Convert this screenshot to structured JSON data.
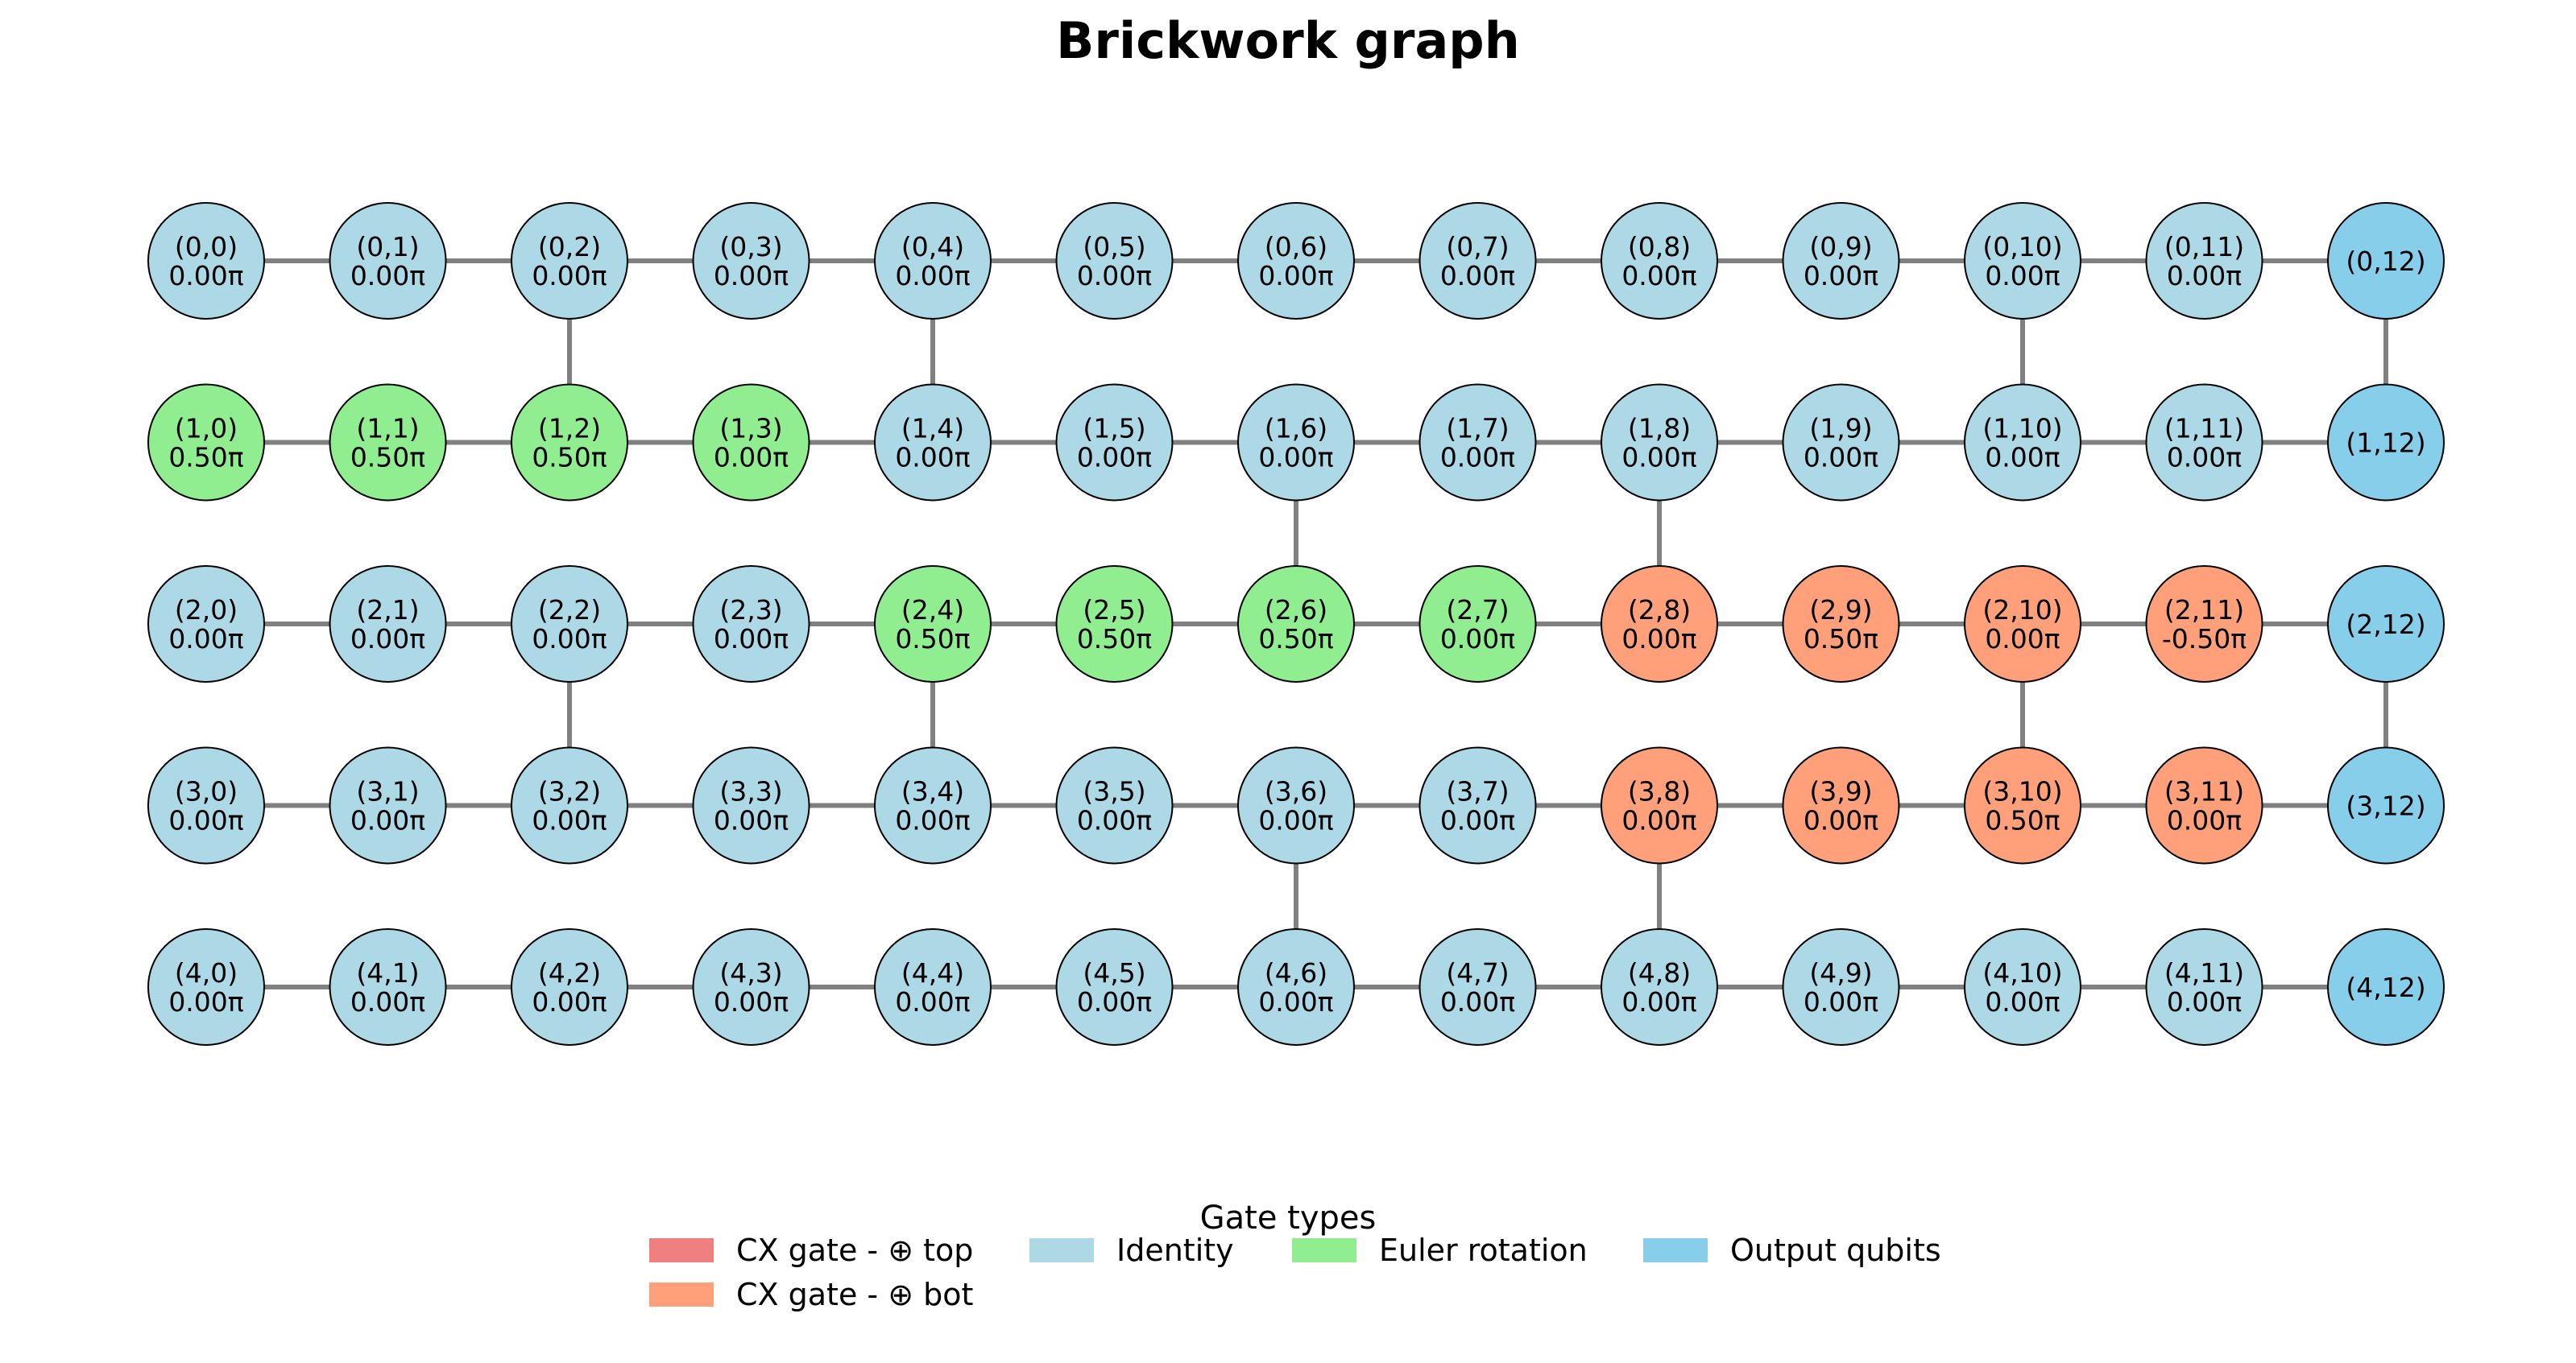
{
  "title": "Brickwork graph",
  "colors": {
    "edge": "#808080",
    "node_stroke": "#000000",
    "identity": "#add8e6",
    "euler": "#90ee90",
    "cx_top": "#f08080",
    "cx_bot": "#ffa07a",
    "output": "#87ceeb"
  },
  "diagram": {
    "rows": 5,
    "cols": 13,
    "nodes": [
      {
        "id": "(0,0)",
        "angle": "0.00π",
        "type": "identity"
      },
      {
        "id": "(0,1)",
        "angle": "0.00π",
        "type": "identity"
      },
      {
        "id": "(0,2)",
        "angle": "0.00π",
        "type": "identity"
      },
      {
        "id": "(0,3)",
        "angle": "0.00π",
        "type": "identity"
      },
      {
        "id": "(0,4)",
        "angle": "0.00π",
        "type": "identity"
      },
      {
        "id": "(0,5)",
        "angle": "0.00π",
        "type": "identity"
      },
      {
        "id": "(0,6)",
        "angle": "0.00π",
        "type": "identity"
      },
      {
        "id": "(0,7)",
        "angle": "0.00π",
        "type": "identity"
      },
      {
        "id": "(0,8)",
        "angle": "0.00π",
        "type": "identity"
      },
      {
        "id": "(0,9)",
        "angle": "0.00π",
        "type": "identity"
      },
      {
        "id": "(0,10)",
        "angle": "0.00π",
        "type": "identity"
      },
      {
        "id": "(0,11)",
        "angle": "0.00π",
        "type": "identity"
      },
      {
        "id": "(0,12)",
        "angle": "",
        "type": "output"
      },
      {
        "id": "(1,0)",
        "angle": "0.50π",
        "type": "euler"
      },
      {
        "id": "(1,1)",
        "angle": "0.50π",
        "type": "euler"
      },
      {
        "id": "(1,2)",
        "angle": "0.50π",
        "type": "euler"
      },
      {
        "id": "(1,3)",
        "angle": "0.00π",
        "type": "euler"
      },
      {
        "id": "(1,4)",
        "angle": "0.00π",
        "type": "identity"
      },
      {
        "id": "(1,5)",
        "angle": "0.00π",
        "type": "identity"
      },
      {
        "id": "(1,6)",
        "angle": "0.00π",
        "type": "identity"
      },
      {
        "id": "(1,7)",
        "angle": "0.00π",
        "type": "identity"
      },
      {
        "id": "(1,8)",
        "angle": "0.00π",
        "type": "identity"
      },
      {
        "id": "(1,9)",
        "angle": "0.00π",
        "type": "identity"
      },
      {
        "id": "(1,10)",
        "angle": "0.00π",
        "type": "identity"
      },
      {
        "id": "(1,11)",
        "angle": "0.00π",
        "type": "identity"
      },
      {
        "id": "(1,12)",
        "angle": "",
        "type": "output"
      },
      {
        "id": "(2,0)",
        "angle": "0.00π",
        "type": "identity"
      },
      {
        "id": "(2,1)",
        "angle": "0.00π",
        "type": "identity"
      },
      {
        "id": "(2,2)",
        "angle": "0.00π",
        "type": "identity"
      },
      {
        "id": "(2,3)",
        "angle": "0.00π",
        "type": "identity"
      },
      {
        "id": "(2,4)",
        "angle": "0.50π",
        "type": "euler"
      },
      {
        "id": "(2,5)",
        "angle": "0.50π",
        "type": "euler"
      },
      {
        "id": "(2,6)",
        "angle": "0.50π",
        "type": "euler"
      },
      {
        "id": "(2,7)",
        "angle": "0.00π",
        "type": "euler"
      },
      {
        "id": "(2,8)",
        "angle": "0.00π",
        "type": "cx_bot"
      },
      {
        "id": "(2,9)",
        "angle": "0.50π",
        "type": "cx_bot"
      },
      {
        "id": "(2,10)",
        "angle": "0.00π",
        "type": "cx_bot"
      },
      {
        "id": "(2,11)",
        "angle": "-0.50π",
        "type": "cx_bot"
      },
      {
        "id": "(2,12)",
        "angle": "",
        "type": "output"
      },
      {
        "id": "(3,0)",
        "angle": "0.00π",
        "type": "identity"
      },
      {
        "id": "(3,1)",
        "angle": "0.00π",
        "type": "identity"
      },
      {
        "id": "(3,2)",
        "angle": "0.00π",
        "type": "identity"
      },
      {
        "id": "(3,3)",
        "angle": "0.00π",
        "type": "identity"
      },
      {
        "id": "(3,4)",
        "angle": "0.00π",
        "type": "identity"
      },
      {
        "id": "(3,5)",
        "angle": "0.00π",
        "type": "identity"
      },
      {
        "id": "(3,6)",
        "angle": "0.00π",
        "type": "identity"
      },
      {
        "id": "(3,7)",
        "angle": "0.00π",
        "type": "identity"
      },
      {
        "id": "(3,8)",
        "angle": "0.00π",
        "type": "cx_bot"
      },
      {
        "id": "(3,9)",
        "angle": "0.00π",
        "type": "cx_bot"
      },
      {
        "id": "(3,10)",
        "angle": "0.50π",
        "type": "cx_bot"
      },
      {
        "id": "(3,11)",
        "angle": "0.00π",
        "type": "cx_bot"
      },
      {
        "id": "(3,12)",
        "angle": "",
        "type": "output"
      },
      {
        "id": "(4,0)",
        "angle": "0.00π",
        "type": "identity"
      },
      {
        "id": "(4,1)",
        "angle": "0.00π",
        "type": "identity"
      },
      {
        "id": "(4,2)",
        "angle": "0.00π",
        "type": "identity"
      },
      {
        "id": "(4,3)",
        "angle": "0.00π",
        "type": "identity"
      },
      {
        "id": "(4,4)",
        "angle": "0.00π",
        "type": "identity"
      },
      {
        "id": "(4,5)",
        "angle": "0.00π",
        "type": "identity"
      },
      {
        "id": "(4,6)",
        "angle": "0.00π",
        "type": "identity"
      },
      {
        "id": "(4,7)",
        "angle": "0.00π",
        "type": "identity"
      },
      {
        "id": "(4,8)",
        "angle": "0.00π",
        "type": "identity"
      },
      {
        "id": "(4,9)",
        "angle": "0.00π",
        "type": "identity"
      },
      {
        "id": "(4,10)",
        "angle": "0.00π",
        "type": "identity"
      },
      {
        "id": "(4,11)",
        "angle": "0.00π",
        "type": "identity"
      },
      {
        "id": "(4,12)",
        "angle": "",
        "type": "output"
      }
    ],
    "vertical_edges": [
      [
        "(0,2)",
        "(1,2)"
      ],
      [
        "(0,4)",
        "(1,4)"
      ],
      [
        "(0,10)",
        "(1,10)"
      ],
      [
        "(0,12)",
        "(1,12)"
      ],
      [
        "(1,6)",
        "(2,6)"
      ],
      [
        "(1,8)",
        "(2,8)"
      ],
      [
        "(2,2)",
        "(3,2)"
      ],
      [
        "(2,4)",
        "(3,4)"
      ],
      [
        "(2,10)",
        "(3,10)"
      ],
      [
        "(2,12)",
        "(3,12)"
      ],
      [
        "(3,6)",
        "(4,6)"
      ],
      [
        "(3,8)",
        "(4,8)"
      ]
    ]
  },
  "legend": {
    "title": "Gate types",
    "entries": [
      {
        "label": "CX gate - ⊕ top",
        "color": "#f08080"
      },
      {
        "label": "Identity",
        "color": "#add8e6"
      },
      {
        "label": "Euler rotation",
        "color": "#90ee90"
      },
      {
        "label": "Output qubits",
        "color": "#87ceeb"
      },
      {
        "label": "CX gate - ⊕ bot",
        "color": "#ffa07a"
      }
    ]
  }
}
